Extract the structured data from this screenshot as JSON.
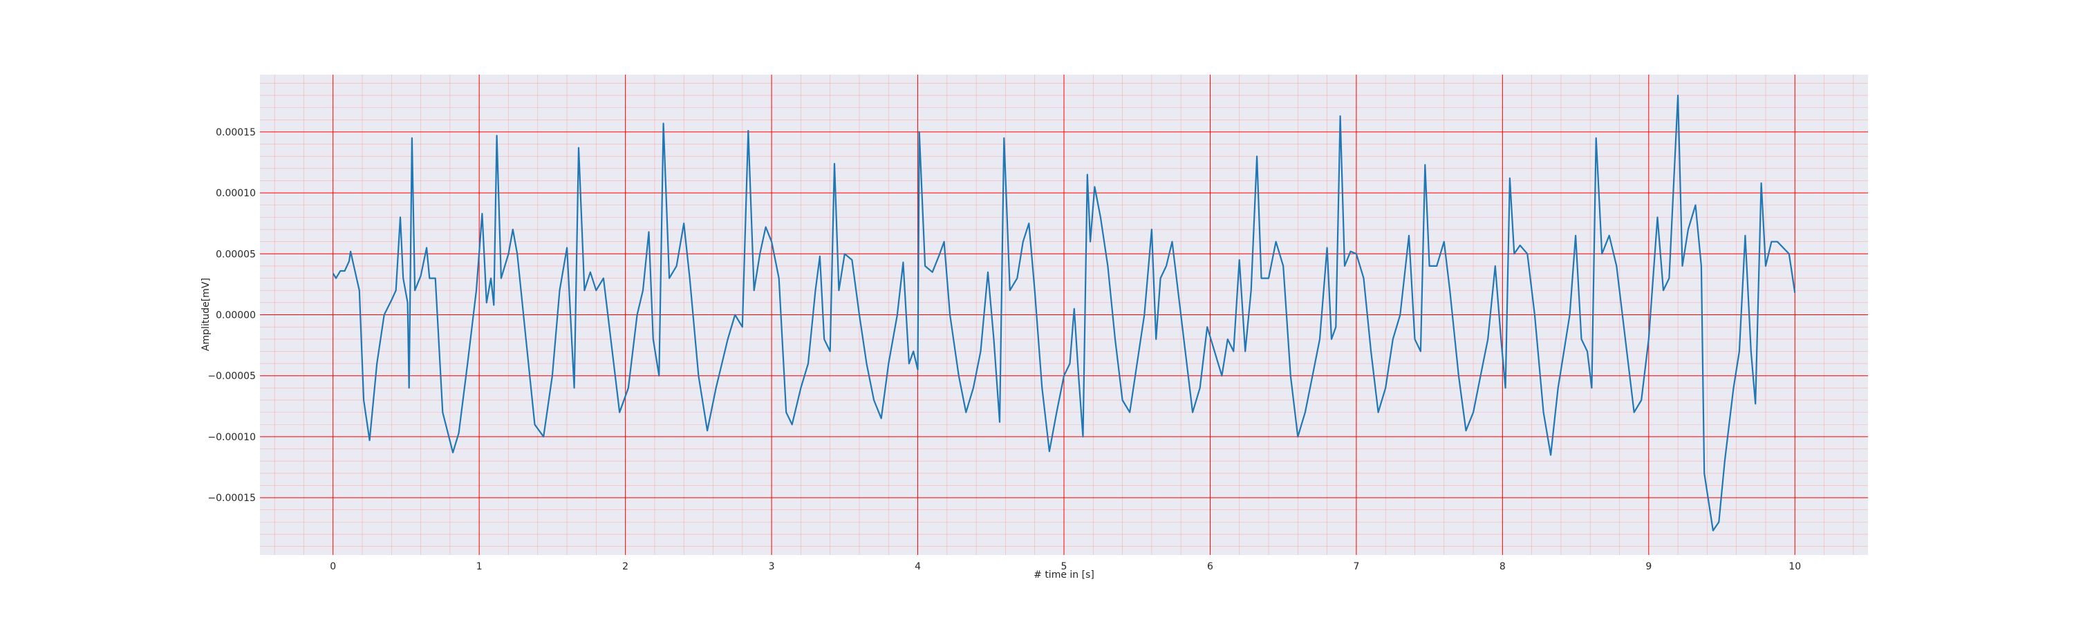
{
  "chart_data": {
    "type": "line",
    "title": "",
    "xlabel": "# time in [s]",
    "ylabel": "Amplitude[mV]",
    "xlim": [
      -0.5,
      10.5
    ],
    "ylim": [
      -0.000197,
      0.000197
    ],
    "xticks": [
      0,
      1,
      2,
      3,
      4,
      5,
      6,
      7,
      8,
      9,
      10
    ],
    "xtick_labels": [
      "0",
      "1",
      "2",
      "3",
      "4",
      "5",
      "6",
      "7",
      "8",
      "9",
      "10"
    ],
    "yticks": [
      0.00015,
      0.0001,
      5e-05,
      0.0,
      -5e-05,
      -0.0001,
      -0.00015
    ],
    "ytick_labels": [
      "0.00015",
      "0.00010",
      "0.00005",
      "0.00000",
      "−0.00005",
      "−0.00010",
      "−0.00015"
    ],
    "grid": "major and minor (red)",
    "colors": {
      "background": "#eaeaf2",
      "major_grid": "#ff0000",
      "minor_grid": "#ff9999",
      "line": "#1f77b4"
    },
    "series": [
      {
        "values": [
          [
            0.0,
            3.4e-05
          ],
          [
            0.02,
            3e-05
          ],
          [
            0.05,
            3.6e-05
          ],
          [
            0.08,
            3.6e-05
          ],
          [
            0.11,
            4.4e-05
          ],
          [
            0.12,
            5.2e-05
          ],
          [
            0.15,
            3.6e-05
          ],
          [
            0.18,
            2e-05
          ],
          [
            0.21,
            -7e-05
          ],
          [
            0.25,
            -0.000103
          ],
          [
            0.3,
            -4e-05
          ],
          [
            0.35,
            0.0
          ],
          [
            0.4,
            1.2e-05
          ],
          [
            0.43,
            2e-05
          ],
          [
            0.46,
            8e-05
          ],
          [
            0.48,
            3e-05
          ],
          [
            0.51,
            1e-05
          ],
          [
            0.52,
            -6e-05
          ],
          [
            0.54,
            0.000145
          ],
          [
            0.56,
            2e-05
          ],
          [
            0.6,
            3.2e-05
          ],
          [
            0.64,
            5.5e-05
          ],
          [
            0.66,
            3e-05
          ],
          [
            0.7,
            3e-05
          ],
          [
            0.75,
            -8e-05
          ],
          [
            0.82,
            -0.000113
          ],
          [
            0.86,
            -9.7e-05
          ],
          [
            0.92,
            -4e-05
          ],
          [
            0.98,
            2e-05
          ],
          [
            1.02,
            8.3e-05
          ],
          [
            1.05,
            1e-05
          ],
          [
            1.08,
            3e-05
          ],
          [
            1.1,
            8e-06
          ],
          [
            1.12,
            0.000147
          ],
          [
            1.15,
            3e-05
          ],
          [
            1.2,
            5e-05
          ],
          [
            1.23,
            7e-05
          ],
          [
            1.26,
            5e-05
          ],
          [
            1.32,
            -2e-05
          ],
          [
            1.38,
            -9e-05
          ],
          [
            1.44,
            -0.0001
          ],
          [
            1.5,
            -5e-05
          ],
          [
            1.55,
            2e-05
          ],
          [
            1.6,
            5.5e-05
          ],
          [
            1.65,
            -6e-05
          ],
          [
            1.68,
            0.000137
          ],
          [
            1.72,
            2e-05
          ],
          [
            1.76,
            3.5e-05
          ],
          [
            1.8,
            2e-05
          ],
          [
            1.85,
            3e-05
          ],
          [
            1.9,
            -2e-05
          ],
          [
            1.96,
            -8e-05
          ],
          [
            2.02,
            -6e-05
          ],
          [
            2.08,
            0.0
          ],
          [
            2.12,
            2e-05
          ],
          [
            2.16,
            6.8e-05
          ],
          [
            2.19,
            -2e-05
          ],
          [
            2.23,
            -5e-05
          ],
          [
            2.26,
            0.000157
          ],
          [
            2.3,
            3e-05
          ],
          [
            2.35,
            4e-05
          ],
          [
            2.4,
            7.5e-05
          ],
          [
            2.44,
            3e-05
          ],
          [
            2.5,
            -5e-05
          ],
          [
            2.56,
            -9.5e-05
          ],
          [
            2.62,
            -6e-05
          ],
          [
            2.66,
            -4e-05
          ],
          [
            2.7,
            -2e-05
          ],
          [
            2.75,
            0.0
          ],
          [
            2.8,
            -1e-05
          ],
          [
            2.84,
            0.000151
          ],
          [
            2.88,
            2e-05
          ],
          [
            2.92,
            5e-05
          ],
          [
            2.96,
            7.2e-05
          ],
          [
            3.0,
            6e-05
          ],
          [
            3.05,
            3e-05
          ],
          [
            3.1,
            -8e-05
          ],
          [
            3.14,
            -9e-05
          ],
          [
            3.2,
            -6e-05
          ],
          [
            3.25,
            -4e-05
          ],
          [
            3.3,
            2e-05
          ],
          [
            3.33,
            4.8e-05
          ],
          [
            3.36,
            -2e-05
          ],
          [
            3.4,
            -3e-05
          ],
          [
            3.43,
            0.000124
          ],
          [
            3.46,
            2e-05
          ],
          [
            3.5,
            5e-05
          ],
          [
            3.55,
            4.5e-05
          ],
          [
            3.6,
            0.0
          ],
          [
            3.65,
            -4e-05
          ],
          [
            3.7,
            -7e-05
          ],
          [
            3.75,
            -8.5e-05
          ],
          [
            3.8,
            -4e-05
          ],
          [
            3.86,
            0.0
          ],
          [
            3.9,
            4.3e-05
          ],
          [
            3.94,
            -4e-05
          ],
          [
            3.97,
            -3e-05
          ],
          [
            4.0,
            -4.5e-05
          ],
          [
            4.01,
            0.00015
          ],
          [
            4.05,
            4e-05
          ],
          [
            4.1,
            3.5e-05
          ],
          [
            4.15,
            5e-05
          ],
          [
            4.18,
            6e-05
          ],
          [
            4.22,
            0.0
          ],
          [
            4.28,
            -5e-05
          ],
          [
            4.33,
            -8e-05
          ],
          [
            4.38,
            -6e-05
          ],
          [
            4.43,
            -3e-05
          ],
          [
            4.48,
            3.5e-05
          ],
          [
            4.52,
            -2e-05
          ],
          [
            4.56,
            -8.8e-05
          ],
          [
            4.59,
            0.000145
          ],
          [
            4.63,
            2e-05
          ],
          [
            4.68,
            3e-05
          ],
          [
            4.72,
            6e-05
          ],
          [
            4.76,
            7.5e-05
          ],
          [
            4.8,
            2e-05
          ],
          [
            4.85,
            -6e-05
          ],
          [
            4.9,
            -0.000112
          ],
          [
            4.95,
            -8e-05
          ],
          [
            5.0,
            -5e-05
          ],
          [
            5.04,
            -4e-05
          ],
          [
            5.07,
            5e-06
          ],
          [
            5.1,
            -5e-05
          ],
          [
            5.13,
            -0.0001
          ],
          [
            5.16,
            0.000115
          ],
          [
            5.18,
            6e-05
          ],
          [
            5.21,
            0.000105
          ],
          [
            5.25,
            8e-05
          ],
          [
            5.3,
            4e-05
          ],
          [
            5.35,
            -2e-05
          ],
          [
            5.4,
            -7e-05
          ],
          [
            5.45,
            -8e-05
          ],
          [
            5.5,
            -4e-05
          ],
          [
            5.55,
            0.0
          ],
          [
            5.6,
            7e-05
          ],
          [
            5.63,
            -2e-05
          ],
          [
            5.66,
            3e-05
          ],
          [
            5.7,
            4e-05
          ],
          [
            5.74,
            6e-05
          ],
          [
            5.78,
            2e-05
          ],
          [
            5.83,
            -3e-05
          ],
          [
            5.88,
            -8e-05
          ],
          [
            5.93,
            -6e-05
          ],
          [
            5.98,
            -1e-05
          ],
          [
            6.03,
            -3e-05
          ],
          [
            6.08,
            -5e-05
          ],
          [
            6.12,
            -2e-05
          ],
          [
            6.16,
            -3e-05
          ],
          [
            6.2,
            4.5e-05
          ],
          [
            6.24,
            -3e-05
          ],
          [
            6.28,
            2e-05
          ],
          [
            6.32,
            0.00013
          ],
          [
            6.35,
            3e-05
          ],
          [
            6.4,
            3e-05
          ],
          [
            6.45,
            6e-05
          ],
          [
            6.5,
            4e-05
          ],
          [
            6.55,
            -5e-05
          ],
          [
            6.6,
            -0.0001
          ],
          [
            6.65,
            -8e-05
          ],
          [
            6.7,
            -5e-05
          ],
          [
            6.75,
            -2e-05
          ],
          [
            6.8,
            5.5e-05
          ],
          [
            6.83,
            -2e-05
          ],
          [
            6.86,
            -1e-05
          ],
          [
            6.89,
            0.000163
          ],
          [
            6.92,
            4e-05
          ],
          [
            6.96,
            5.2e-05
          ],
          [
            7.0,
            5e-05
          ],
          [
            7.05,
            3e-05
          ],
          [
            7.1,
            -3e-05
          ],
          [
            7.15,
            -8e-05
          ],
          [
            7.2,
            -6e-05
          ],
          [
            7.25,
            -2e-05
          ],
          [
            7.3,
            0.0
          ],
          [
            7.36,
            6.5e-05
          ],
          [
            7.4,
            -2e-05
          ],
          [
            7.44,
            -3e-05
          ],
          [
            7.47,
            0.000123
          ],
          [
            7.5,
            4e-05
          ],
          [
            7.55,
            4e-05
          ],
          [
            7.6,
            6e-05
          ],
          [
            7.64,
            2e-05
          ],
          [
            7.7,
            -5e-05
          ],
          [
            7.75,
            -9.5e-05
          ],
          [
            7.8,
            -8e-05
          ],
          [
            7.85,
            -5e-05
          ],
          [
            7.9,
            -2e-05
          ],
          [
            7.95,
            4e-05
          ],
          [
            7.99,
            -2e-05
          ],
          [
            8.02,
            -6e-05
          ],
          [
            8.05,
            0.000112
          ],
          [
            8.08,
            5e-05
          ],
          [
            8.12,
            5.7e-05
          ],
          [
            8.17,
            5e-05
          ],
          [
            8.22,
            0.0
          ],
          [
            8.28,
            -8e-05
          ],
          [
            8.33,
            -0.000115
          ],
          [
            8.38,
            -6e-05
          ],
          [
            8.42,
            -3e-05
          ],
          [
            8.46,
            0.0
          ],
          [
            8.5,
            6.5e-05
          ],
          [
            8.54,
            -2e-05
          ],
          [
            8.58,
            -3e-05
          ],
          [
            8.61,
            -6e-05
          ],
          [
            8.64,
            0.000145
          ],
          [
            8.68,
            5e-05
          ],
          [
            8.73,
            6.5e-05
          ],
          [
            8.78,
            4e-05
          ],
          [
            8.84,
            -2e-05
          ],
          [
            8.9,
            -8e-05
          ],
          [
            8.95,
            -7e-05
          ],
          [
            9.0,
            -2e-05
          ],
          [
            9.06,
            8e-05
          ],
          [
            9.1,
            2e-05
          ],
          [
            9.14,
            3e-05
          ],
          [
            9.2,
            0.00018
          ],
          [
            9.23,
            4e-05
          ],
          [
            9.27,
            7e-05
          ],
          [
            9.32,
            9e-05
          ],
          [
            9.36,
            4e-05
          ],
          [
            9.38,
            -0.00013
          ],
          [
            9.44,
            -0.000177
          ],
          [
            9.48,
            -0.00017
          ],
          [
            9.52,
            -0.00012
          ],
          [
            9.58,
            -6e-05
          ],
          [
            9.62,
            -3e-05
          ],
          [
            9.66,
            6.5e-05
          ],
          [
            9.7,
            -3e-05
          ],
          [
            9.73,
            -7.3e-05
          ],
          [
            9.77,
            0.000108
          ],
          [
            9.8,
            4e-05
          ],
          [
            9.84,
            6e-05
          ],
          [
            9.88,
            6e-05
          ],
          [
            9.92,
            5.5e-05
          ],
          [
            9.96,
            5e-05
          ],
          [
            10.0,
            1.8e-05
          ]
        ]
      }
    ]
  }
}
